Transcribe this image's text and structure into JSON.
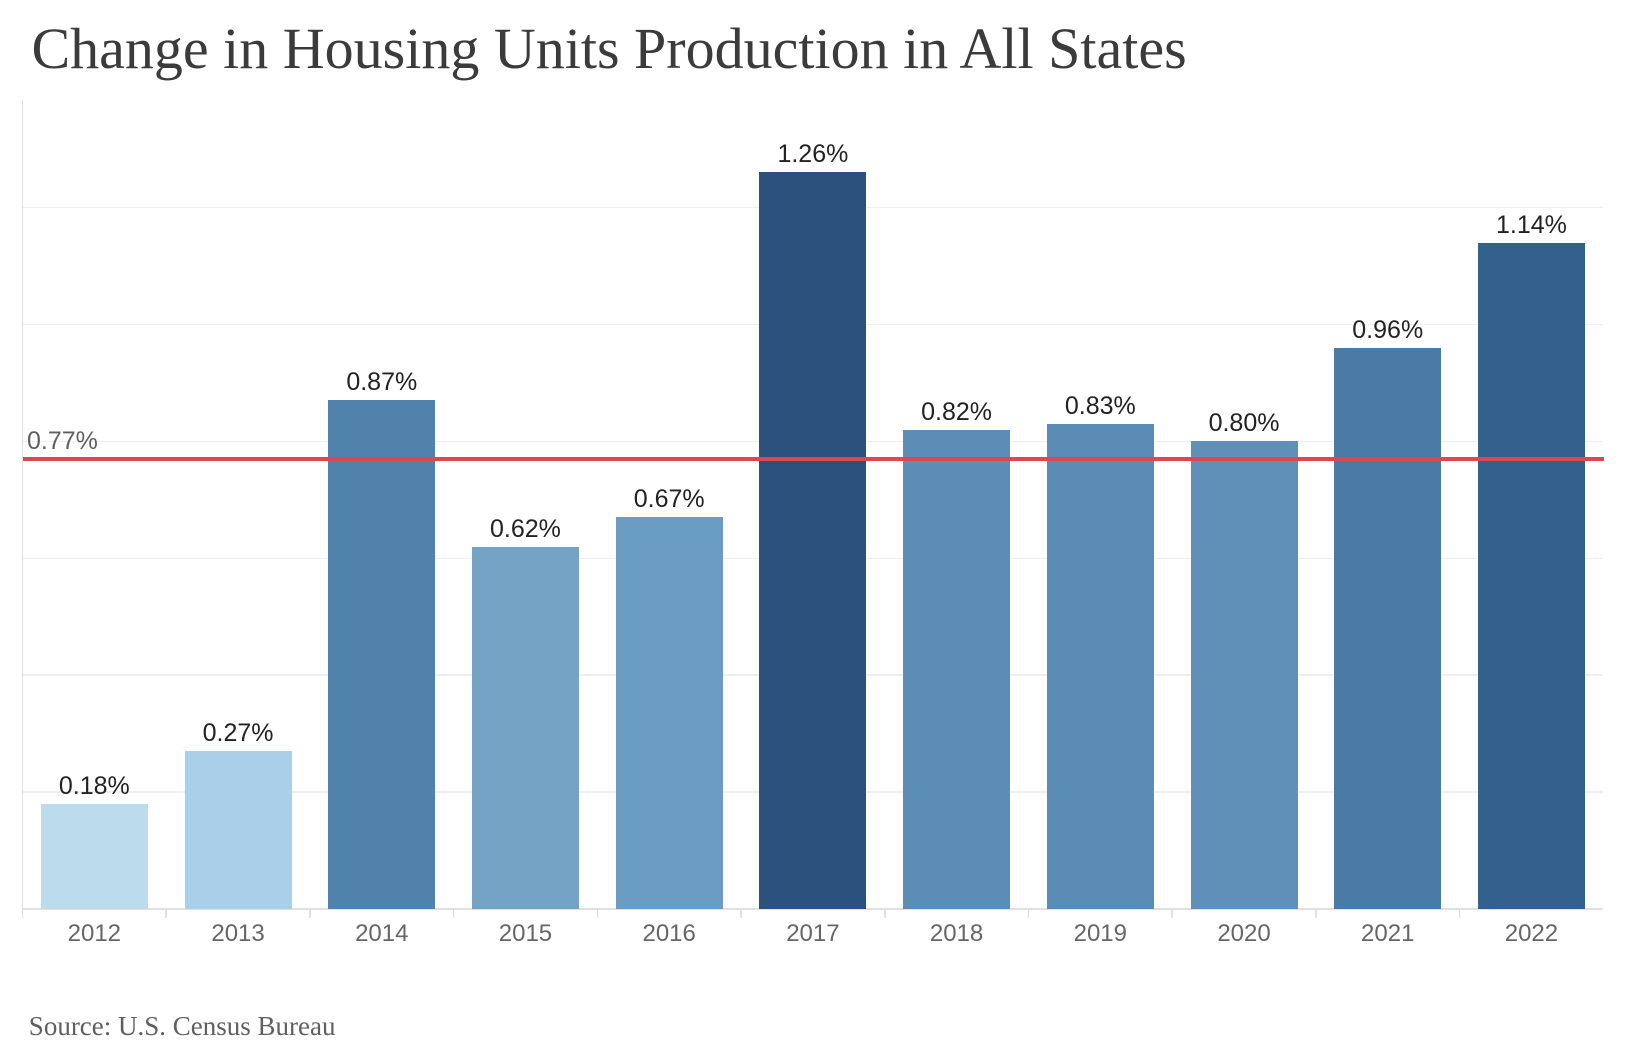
{
  "chart_data": {
    "type": "bar",
    "title": "Change in Housing Units Production in All States",
    "categories": [
      "2012",
      "2013",
      "2014",
      "2015",
      "2016",
      "2017",
      "2018",
      "2019",
      "2020",
      "2021",
      "2022"
    ],
    "values": [
      0.18,
      0.27,
      0.87,
      0.62,
      0.67,
      1.26,
      0.82,
      0.83,
      0.8,
      0.96,
      1.14
    ],
    "value_labels": [
      "0.18%",
      "0.27%",
      "0.87%",
      "0.62%",
      "0.67%",
      "1.26%",
      "0.82%",
      "0.83%",
      "0.80%",
      "0.96%",
      "1.14%"
    ],
    "bar_colors": [
      "#bcdcee",
      "#a9d0e8",
      "#5082ac",
      "#74a3c6",
      "#6b9cc1",
      "#2a527d",
      "#5c8db6",
      "#5b8cb5",
      "#6090b8",
      "#497ba6",
      "#33608c"
    ],
    "xlabel": "",
    "ylabel": "",
    "ylim": [
      0,
      1.384
    ],
    "gridline_step": 0.2,
    "grid": true,
    "legend": "none",
    "reference_line": {
      "value": 0.77,
      "label": "0.77%",
      "color": "#d9494d"
    },
    "source_note": "Source: U.S. Census Bureau"
  }
}
